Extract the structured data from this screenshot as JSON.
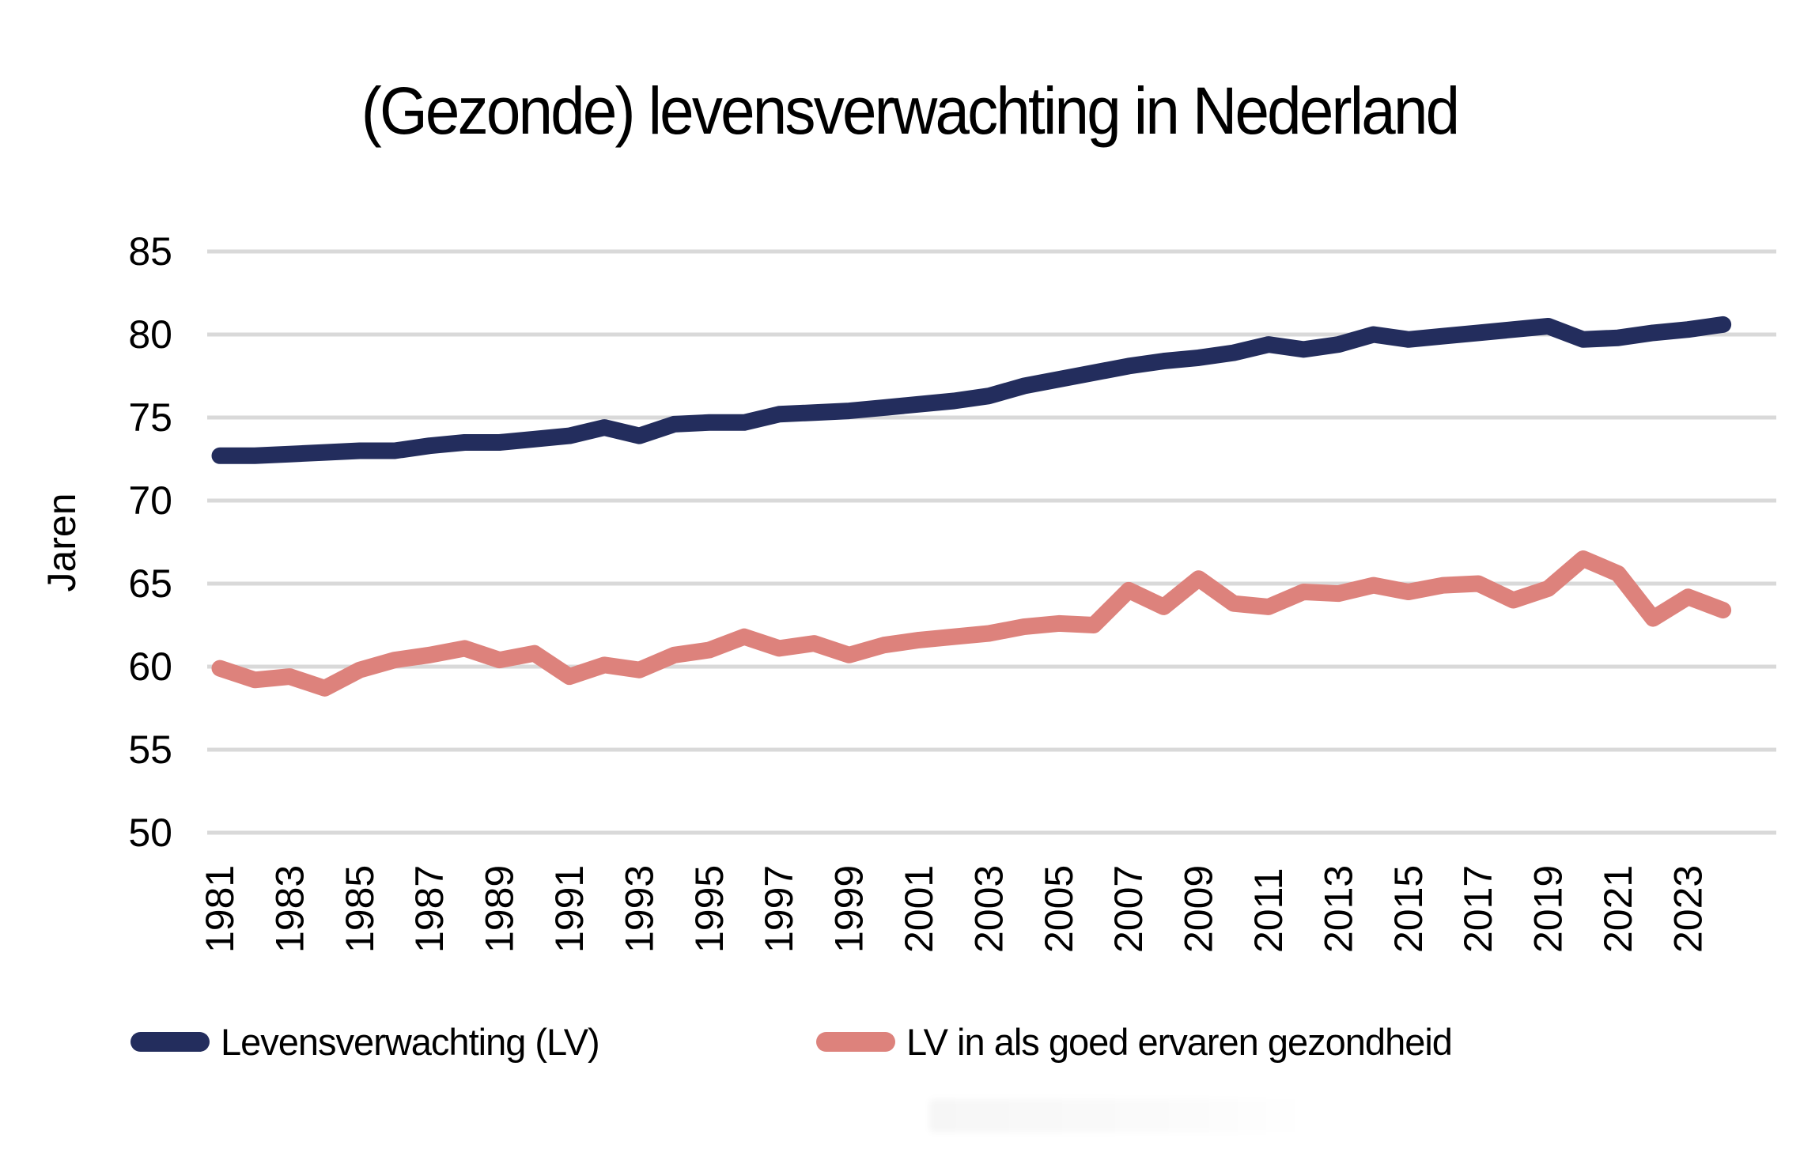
{
  "title": "(Gezonde) levensverwachting in Nederland",
  "chart_data": {
    "type": "line",
    "title": "(Gezonde) levensverwachting in Nederland",
    "ylabel": "Jaren",
    "ylim": [
      50,
      85
    ],
    "yticks": [
      50,
      55,
      60,
      65,
      70,
      75,
      80,
      85
    ],
    "x": [
      1981,
      1982,
      1983,
      1984,
      1985,
      1986,
      1987,
      1988,
      1989,
      1990,
      1991,
      1992,
      1993,
      1994,
      1995,
      1996,
      1997,
      1998,
      1999,
      2000,
      2001,
      2002,
      2003,
      2004,
      2005,
      2006,
      2007,
      2008,
      2009,
      2010,
      2011,
      2012,
      2013,
      2014,
      2015,
      2016,
      2017,
      2018,
      2019,
      2020,
      2021,
      2022,
      2023,
      2024
    ],
    "xtick_labels": [
      "1981",
      "1983",
      "1985",
      "1987",
      "1989",
      "1991",
      "1993",
      "1995",
      "1997",
      "1999",
      "2001",
      "2003",
      "2005",
      "2007",
      "2009",
      "2011",
      "2013",
      "2015",
      "2017",
      "2019",
      "2021",
      "2023"
    ],
    "grid": "horizontal",
    "legend_position": "bottom",
    "gridline_color": "#D9D9D9",
    "text_color": "#000000",
    "background": "#FFFFFF",
    "series": [
      {
        "name": "Levensverwachting (LV)",
        "color": "#232D5D",
        "values": [
          72.7,
          72.7,
          72.8,
          72.9,
          73.0,
          73.0,
          73.3,
          73.5,
          73.5,
          73.7,
          73.9,
          74.4,
          73.9,
          74.6,
          74.7,
          74.7,
          75.2,
          75.3,
          75.4,
          75.6,
          75.8,
          76.0,
          76.3,
          76.9,
          77.3,
          77.7,
          78.1,
          78.4,
          78.6,
          78.9,
          79.4,
          79.1,
          79.4,
          80.0,
          79.7,
          79.9,
          80.1,
          80.3,
          80.5,
          79.7,
          79.8,
          80.1,
          80.3,
          80.6
        ]
      },
      {
        "name": "LV in als goed ervaren gezondheid",
        "color": "#DD827C",
        "values": [
          59.9,
          59.2,
          59.4,
          58.7,
          59.8,
          60.4,
          60.7,
          61.1,
          60.4,
          60.8,
          59.4,
          60.1,
          59.8,
          60.7,
          61.0,
          61.8,
          61.1,
          61.4,
          60.7,
          61.3,
          61.6,
          61.8,
          62.0,
          62.4,
          62.6,
          62.5,
          64.6,
          63.6,
          65.3,
          63.8,
          63.6,
          64.5,
          64.4,
          64.9,
          64.5,
          64.9,
          65.0,
          64.0,
          64.7,
          66.5,
          65.6,
          62.9,
          64.2,
          63.4
        ]
      }
    ]
  }
}
